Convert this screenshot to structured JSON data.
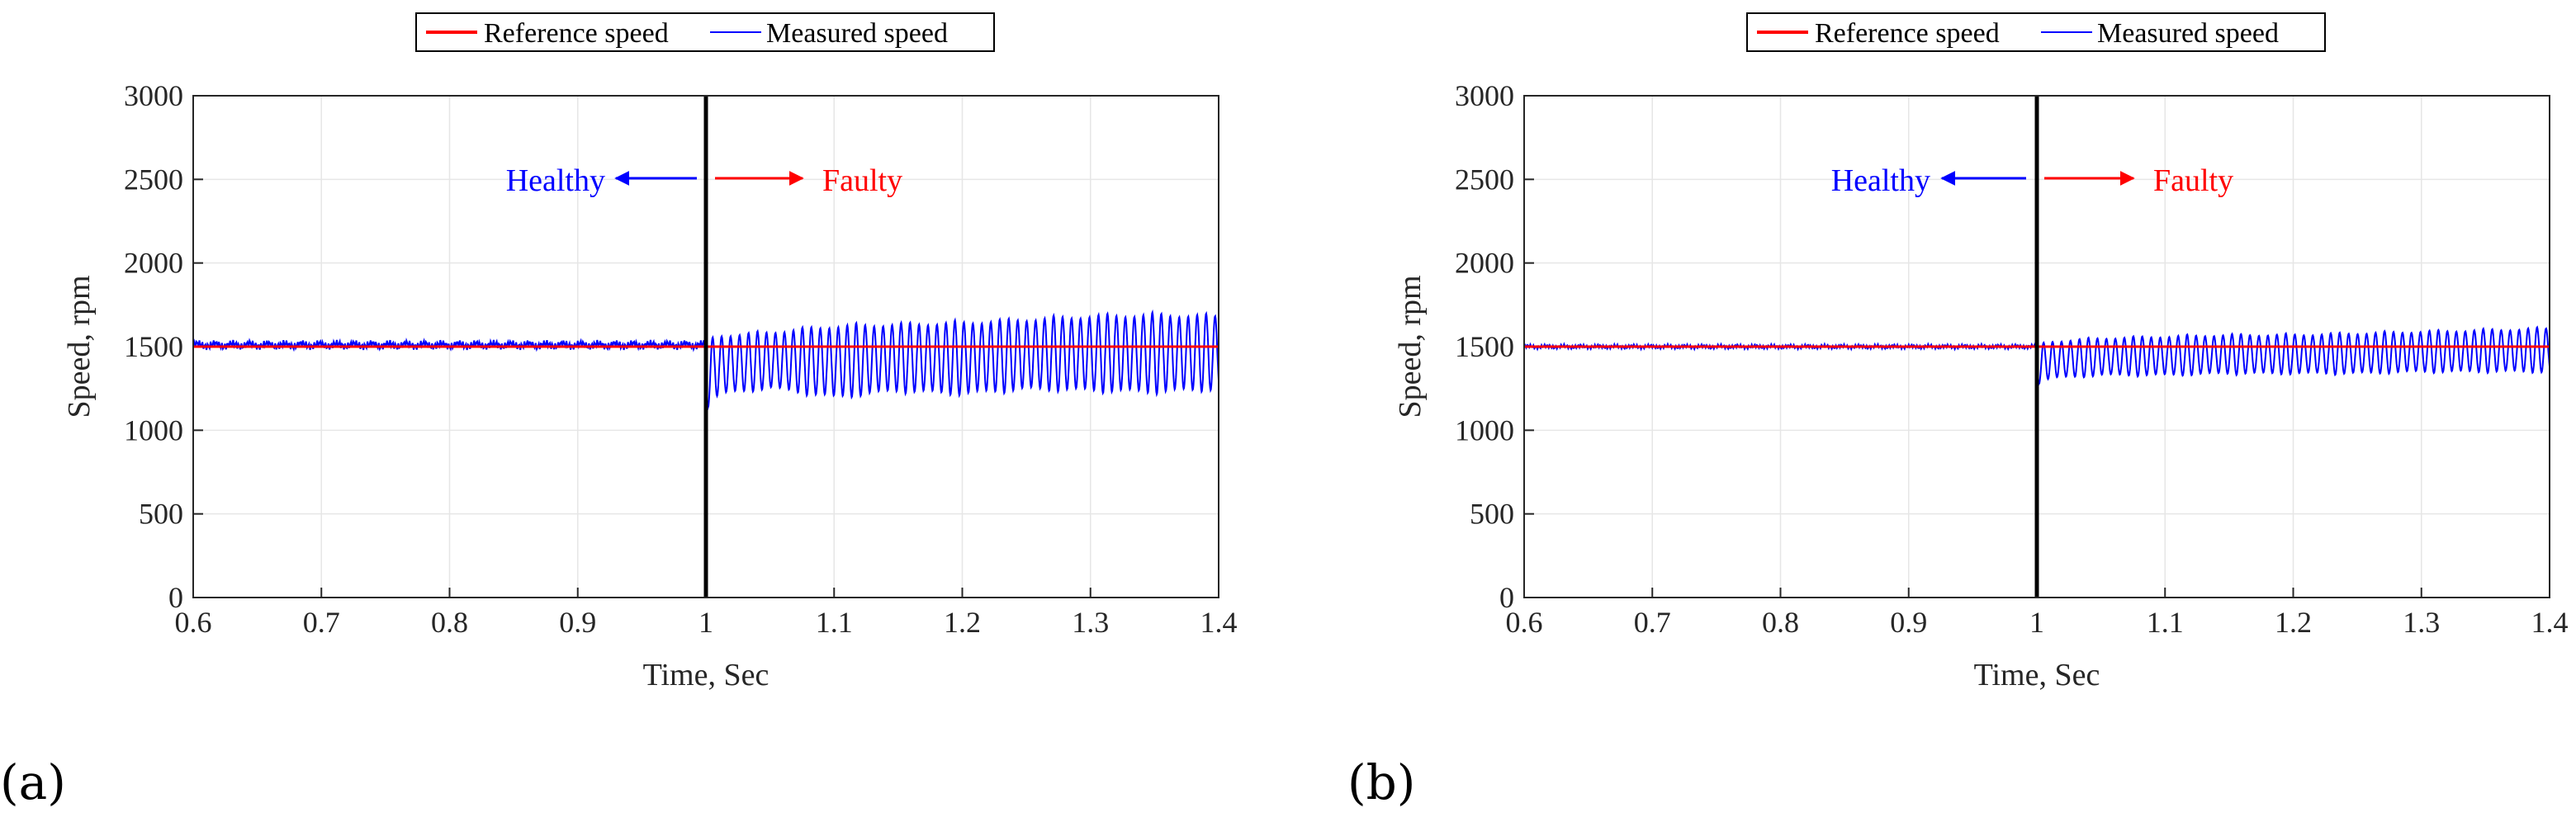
{
  "colors": {
    "reference": "#ff0000",
    "measured": "#0000ff",
    "fault_line": "#000000",
    "healthy_text": "#0000ff",
    "faulty_text": "#ff0000",
    "grid": "#e6e6e6",
    "axis": "#262626"
  },
  "chart_data": [
    {
      "panel_label": "(a)",
      "type": "line",
      "title": "",
      "xlabel": "Time, Sec",
      "ylabel": "Speed, rpm",
      "xlim": [
        0.6,
        1.4
      ],
      "ylim": [
        0,
        3000
      ],
      "x_ticks": [
        0.6,
        0.7,
        0.8,
        0.9,
        1.0,
        1.1,
        1.2,
        1.3,
        1.4
      ],
      "x_tick_labels": [
        "0.6",
        "0.7",
        "0.8",
        "0.9",
        "1",
        "1.1",
        "1.2",
        "1.3",
        "1.4"
      ],
      "y_ticks": [
        0,
        500,
        1000,
        1500,
        2000,
        2500,
        3000
      ],
      "y_tick_labels": [
        "0",
        "500",
        "1000",
        "1500",
        "2000",
        "2500",
        "3000"
      ],
      "grid": true,
      "legend": {
        "position": "top-center-outside",
        "entries": [
          "Reference speed",
          "Measured speed"
        ]
      },
      "fault_time": 1.0,
      "annotations": {
        "healthy": "Healthy",
        "faulty": "Faulty"
      },
      "series": [
        {
          "name": "Reference speed",
          "x": [
            0.6,
            1.4
          ],
          "y": [
            1500,
            1500
          ]
        },
        {
          "name": "Measured speed",
          "healthy": {
            "x_start": 0.6,
            "x_end": 1.0,
            "mean": 1510,
            "ripple": 25
          },
          "faulty": {
            "x_start": 1.0,
            "x_end": 1.4,
            "mean": 1420,
            "oscillation_period": 0.007,
            "envelope_x": [
              1.0,
              1.01,
              1.05,
              1.1,
              1.15,
              1.2,
              1.25,
              1.3,
              1.35,
              1.4
            ],
            "envelope_max": [
              1550,
              1580,
              1600,
              1640,
              1650,
              1660,
              1680,
              1700,
              1710,
              1700
            ],
            "envelope_min": [
              1120,
              1200,
              1240,
              1180,
              1220,
              1200,
              1230,
              1220,
              1210,
              1230
            ]
          }
        }
      ]
    },
    {
      "panel_label": "(b)",
      "type": "line",
      "title": "",
      "xlabel": "Time, Sec",
      "ylabel": "Speed, rpm",
      "xlim": [
        0.6,
        1.4
      ],
      "ylim": [
        0,
        3000
      ],
      "x_ticks": [
        0.6,
        0.7,
        0.8,
        0.9,
        1.0,
        1.1,
        1.2,
        1.3,
        1.4
      ],
      "x_tick_labels": [
        "0.6",
        "0.7",
        "0.8",
        "0.9",
        "1",
        "1.1",
        "1.2",
        "1.3",
        "1.4"
      ],
      "y_ticks": [
        0,
        500,
        1000,
        1500,
        2000,
        2500,
        3000
      ],
      "y_tick_labels": [
        "0",
        "500",
        "1000",
        "1500",
        "2000",
        "2500",
        "3000"
      ],
      "grid": true,
      "legend": {
        "position": "top-center-outside",
        "entries": [
          "Reference speed",
          "Measured speed"
        ]
      },
      "fault_time": 1.0,
      "annotations": {
        "healthy": "Healthy",
        "faulty": "Faulty"
      },
      "series": [
        {
          "name": "Reference speed",
          "x": [
            0.6,
            1.4
          ],
          "y": [
            1500,
            1500
          ]
        },
        {
          "name": "Measured speed",
          "healthy": {
            "x_start": 0.6,
            "x_end": 1.0,
            "mean": 1500,
            "ripple": 12
          },
          "faulty": {
            "x_start": 1.0,
            "x_end": 1.4,
            "mean": 1450,
            "oscillation_period": 0.007,
            "envelope_x": [
              1.0,
              1.01,
              1.05,
              1.1,
              1.15,
              1.2,
              1.25,
              1.3,
              1.35,
              1.4
            ],
            "envelope_max": [
              1520,
              1540,
              1560,
              1570,
              1580,
              1580,
              1590,
              1600,
              1610,
              1620
            ],
            "envelope_min": [
              1270,
              1300,
              1320,
              1320,
              1330,
              1330,
              1330,
              1340,
              1340,
              1340
            ]
          }
        }
      ]
    }
  ]
}
